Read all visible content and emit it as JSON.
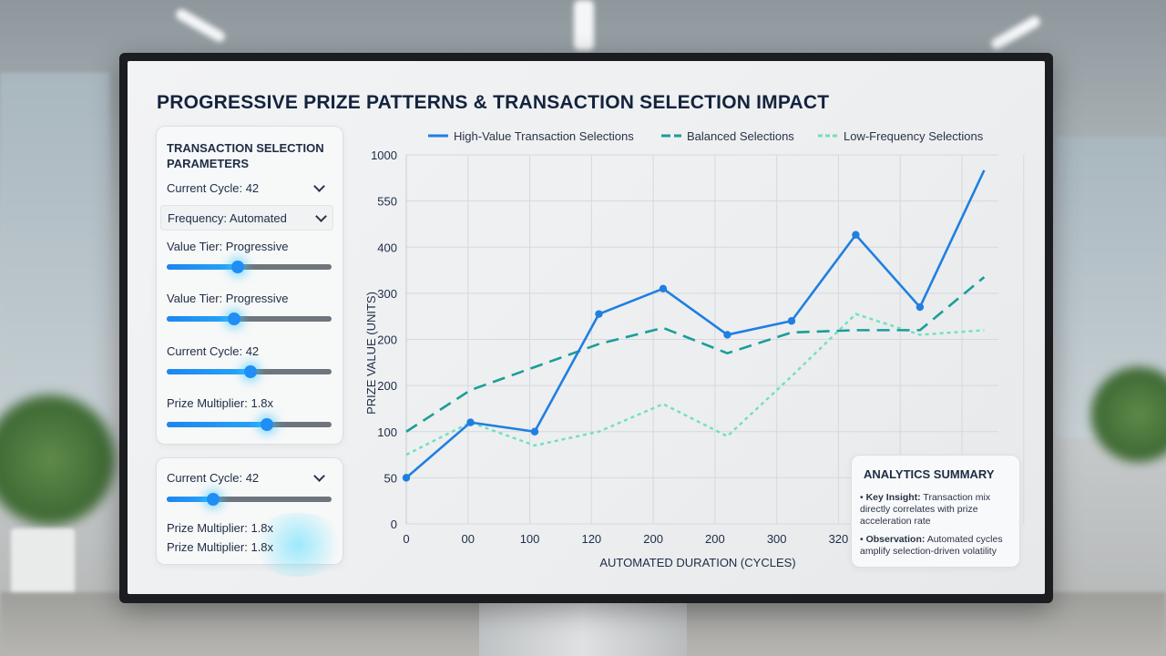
{
  "title": "PROGRESSIVE PRIZE PATTERNS & TRANSACTION SELECTION IMPACT",
  "parameters_panel": {
    "heading_line1": "TRANSACTION SELECTION",
    "heading_line2": "PARAMETERS",
    "current_cycle_select": "Current Cycle: 42",
    "frequency_select": "Frequency: Automated",
    "sliders": [
      {
        "label": "Value Tier: Progressive",
        "value": 0.43
      },
      {
        "label": "Value Tier: Progressive",
        "value": 0.41
      },
      {
        "label": "Current Cycle: 42",
        "value": 0.51
      },
      {
        "label": "Prize Multiplier: 1.8x",
        "value": 0.61
      }
    ]
  },
  "secondary_panel": {
    "current_cycle_select": "Current Cycle: 42",
    "slider_value": 0.28,
    "line1": "Prize Multiplier: 1.8x",
    "line2": "Prize Multiplier: 1.8x"
  },
  "colors": {
    "high_value": "#1f7fe0",
    "balanced": "#1a9e97",
    "low_frequency": "#6fe0bf",
    "title": "#14233d"
  },
  "chart_data": {
    "type": "line",
    "ylabel": "PRIZE VALUE (UNITS)",
    "xlabel": "AUTOMATED DURATION (CYCLES)",
    "y_ticks": [
      "1000",
      "550",
      "400",
      "300",
      "200",
      "200",
      "100",
      "50",
      "0"
    ],
    "x_ticks": [
      "0",
      "00",
      "100",
      "120",
      "200",
      "200",
      "300",
      "320",
      "300",
      "300"
    ],
    "grid": true,
    "legend_position": "top",
    "series": [
      {
        "name": "High-Value Transaction Selections",
        "style": "solid",
        "values": [
          50,
          110,
          100,
          255,
          310,
          210,
          240,
          440,
          270,
          850
        ],
        "point_labels_index": [
          0,
          1,
          2,
          3,
          4,
          5,
          6,
          7,
          8,
          9
        ]
      },
      {
        "name": "Balanced Selections",
        "style": "dashed",
        "values": [
          100,
          145,
          170,
          195,
          225,
          185,
          215,
          220,
          220,
          335
        ]
      },
      {
        "name": "Low-Frequency Selections",
        "style": "dotted",
        "values": [
          75,
          110,
          85,
          100,
          130,
          95,
          160,
          255,
          210,
          220
        ]
      }
    ]
  },
  "summary": {
    "title": "ANALYTICS SUMMARY",
    "item1_label": "Key Insight:",
    "item1_text": "Transaction mix directly correlates with prize acceleration rate",
    "item2_label": "Observation:",
    "item2_text": "Automated cycles amplify selection-driven volatility"
  }
}
